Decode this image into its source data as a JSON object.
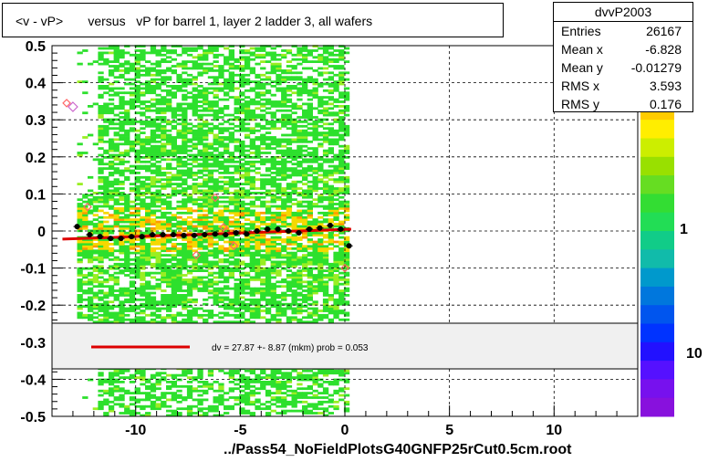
{
  "title": "<v - vP>       versus   vP for barrel 1, layer 2 ladder 3, all wafers",
  "stats": {
    "name": "dvvP2003",
    "rows": [
      {
        "label": "Entries",
        "value": "26167"
      },
      {
        "label": "Mean x",
        "value": "-6.828"
      },
      {
        "label": "Mean y",
        "value": "-0.01279"
      },
      {
        "label": "RMS x",
        "value": "3.593"
      },
      {
        "label": "RMS y",
        "value": "0.176"
      }
    ]
  },
  "fit_text": "dv =   27.87 +-  8.87 (mkm) prob = 0.053",
  "filename": "../Pass54_NoFieldPlotsG40GNFP25rCut0.5cm.root",
  "colors": {
    "hist_main": "#2de02d",
    "hist_light": "#99ee22",
    "hist_hot": "#f5d800",
    "hist_orange": "#ff9900",
    "fit_line": "#dd0000",
    "legend_bg": "#f0f0f0"
  },
  "chart_data": {
    "type": "heatmap",
    "xlim": [
      -14,
      14
    ],
    "ylim": [
      -0.5,
      0.5
    ],
    "xticks": [
      -10,
      -5,
      0,
      5,
      10
    ],
    "yticks": [
      -0.5,
      -0.4,
      -0.3,
      -0.2,
      -0.1,
      0,
      0.1,
      0.2,
      0.3,
      0.4,
      0.5
    ],
    "grid": true,
    "occupied_x_range": [
      -12.8,
      0
    ],
    "colorbar_labels": [
      "1",
      "10"
    ],
    "profile_points": {
      "x": [
        -12.8,
        -12.2,
        -11.7,
        -11.2,
        -10.7,
        -10.2,
        -9.7,
        -9.2,
        -8.7,
        -8.2,
        -7.7,
        -7.2,
        -6.7,
        -6.2,
        -5.7,
        -5.2,
        -4.7,
        -4.2,
        -3.7,
        -3.2,
        -2.7,
        -2.2,
        -1.7,
        -1.2,
        -0.7,
        -0.2,
        0.2
      ],
      "y": [
        0.012,
        -0.01,
        -0.015,
        -0.02,
        -0.02,
        -0.015,
        -0.015,
        -0.01,
        -0.01,
        -0.01,
        -0.012,
        -0.012,
        -0.01,
        -0.008,
        -0.01,
        -0.005,
        -0.008,
        0,
        0.005,
        0.005,
        0,
        -0.005,
        0.005,
        0.008,
        0.015,
        0.005,
        -0.04
      ]
    },
    "outlier_points": {
      "x": [
        -13.3,
        -12.3,
        -7.1,
        -6.2,
        -5.8,
        -5.3,
        0
      ],
      "y": [
        0.345,
        0.065,
        -0.065,
        0.09,
        0.01,
        -0.04,
        -0.1
      ]
    },
    "extra_points": {
      "x": [
        -13.0
      ],
      "y": [
        0.335
      ]
    },
    "fit_line": {
      "x": [
        -13.5,
        0.3
      ],
      "y": [
        -0.022,
        0.005
      ]
    }
  }
}
